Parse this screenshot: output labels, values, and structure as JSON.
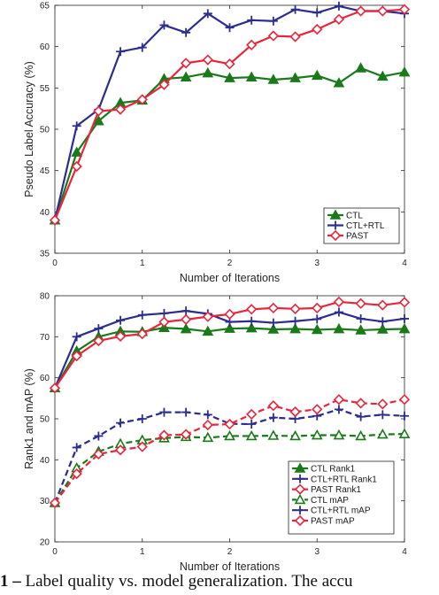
{
  "chart_data": [
    {
      "type": "line",
      "xlabel": "Number of Iterations",
      "ylabel": "Pseudo Label Accuracy (%)",
      "xlim": [
        0,
        4
      ],
      "ylim": [
        35,
        65
      ],
      "xticks": [
        "0",
        "1",
        "2",
        "3",
        "4"
      ],
      "yticks": [
        "35",
        "40",
        "45",
        "50",
        "55",
        "60",
        "65"
      ],
      "grid": false,
      "legend_position": "bottom-right",
      "x": [
        0,
        0.25,
        0.5,
        0.75,
        1.0,
        1.25,
        1.5,
        1.75,
        2.0,
        2.25,
        2.5,
        2.75,
        3.0,
        3.25,
        3.5,
        3.75,
        4.0
      ],
      "series": [
        {
          "name": "CTL",
          "color": "#1a7a1a",
          "marker": "triangle",
          "dashed": false,
          "values": [
            39.0,
            47.2,
            51.0,
            53.2,
            53.5,
            56.1,
            56.3,
            56.8,
            56.2,
            56.3,
            56.0,
            56.2,
            56.5,
            55.6,
            57.4,
            56.4,
            56.9
          ]
        },
        {
          "name": "CTL+RTL",
          "color": "#2b2d8f",
          "marker": "plus",
          "dashed": false,
          "values": [
            39.0,
            50.4,
            52.4,
            59.4,
            59.9,
            62.6,
            61.7,
            64.0,
            62.3,
            63.2,
            63.1,
            64.5,
            64.1,
            64.9,
            64.3,
            64.3,
            64.0
          ]
        },
        {
          "name": "PAST",
          "color": "#e8253a",
          "marker": "diamond",
          "dashed": false,
          "values": [
            39.0,
            45.5,
            52.2,
            52.4,
            53.6,
            55.4,
            58.0,
            58.4,
            57.9,
            60.2,
            61.3,
            61.2,
            62.1,
            63.3,
            64.3,
            64.3,
            64.5
          ]
        }
      ]
    },
    {
      "type": "line",
      "xlabel": "Number of Iterations",
      "ylabel": "Rank1 and mAP (%)",
      "xlim": [
        0,
        4
      ],
      "ylim": [
        20,
        80
      ],
      "xticks": [
        "0",
        "1",
        "2",
        "3",
        "4"
      ],
      "yticks": [
        "20",
        "30",
        "40",
        "50",
        "60",
        "70",
        "80"
      ],
      "grid": false,
      "legend_position": "bottom-right",
      "x": [
        0,
        0.25,
        0.5,
        0.75,
        1.0,
        1.25,
        1.5,
        1.75,
        2.0,
        2.25,
        2.5,
        2.75,
        3.0,
        3.25,
        3.5,
        3.75,
        4.0
      ],
      "series": [
        {
          "name": "CTL Rank1",
          "color": "#1a7a1a",
          "marker": "triangle",
          "dashed": false,
          "values": [
            57.5,
            66.5,
            70.0,
            71.3,
            71.2,
            72.2,
            71.9,
            71.3,
            72.0,
            72.1,
            71.8,
            71.9,
            71.7,
            71.9,
            71.6,
            71.8,
            71.9
          ]
        },
        {
          "name": "CTL+RTL Rank1",
          "color": "#2b2d8f",
          "marker": "plus",
          "dashed": false,
          "values": [
            57.5,
            70.0,
            72.0,
            74.0,
            75.3,
            75.7,
            76.3,
            75.6,
            73.6,
            73.8,
            73.4,
            73.8,
            74.3,
            76.0,
            74.4,
            73.7,
            74.4
          ]
        },
        {
          "name": "PAST Rank1",
          "color": "#e8253a",
          "marker": "diamond",
          "dashed": false,
          "values": [
            57.5,
            65.3,
            69.0,
            70.1,
            70.7,
            73.6,
            74.2,
            74.9,
            75.5,
            76.7,
            77.0,
            76.8,
            77.0,
            78.5,
            78.1,
            77.7,
            78.4
          ]
        },
        {
          "name": "CTL mAP",
          "color": "#1a7a1a",
          "marker": "triangle-open",
          "dashed": true,
          "values": [
            29.5,
            38.0,
            42.0,
            43.9,
            44.8,
            45.3,
            45.6,
            45.4,
            45.8,
            45.8,
            45.9,
            45.8,
            46.0,
            46.0,
            45.8,
            46.2,
            46.3
          ]
        },
        {
          "name": "CTL+RTL mAP",
          "color": "#2b2d8f",
          "marker": "plus",
          "dashed": true,
          "values": [
            29.5,
            43.0,
            45.8,
            49.0,
            50.0,
            51.6,
            51.6,
            51.0,
            48.8,
            48.7,
            50.3,
            50.0,
            50.7,
            52.3,
            50.5,
            51.0,
            50.7
          ]
        },
        {
          "name": "PAST mAP",
          "color": "#e8253a",
          "marker": "diamond-open",
          "dashed": true,
          "values": [
            29.5,
            36.6,
            41.4,
            42.4,
            43.2,
            46.0,
            46.2,
            48.5,
            48.7,
            51.1,
            53.2,
            51.7,
            52.3,
            54.7,
            53.8,
            53.6,
            54.7
          ]
        }
      ]
    }
  ],
  "caption": {
    "prefix": "1 – ",
    "text": "Label quality vs. model generalization.  The accu"
  }
}
